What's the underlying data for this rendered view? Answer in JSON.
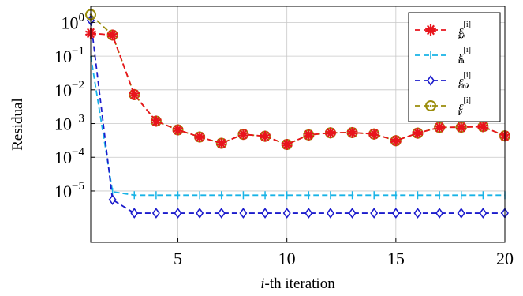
{
  "chart_data": {
    "type": "line",
    "xlabel": "-th iteration",
    "xlabel_var": "i",
    "ylabel": "Residual",
    "xlim": [
      1,
      20
    ],
    "ylim": [
      3e-07,
      3
    ],
    "yscale": "log",
    "x_ticks": [
      5,
      10,
      15,
      20
    ],
    "x_tick_labels": [
      "5",
      "10",
      "15",
      "20"
    ],
    "y_ticks": [
      1e-05,
      0.0001,
      0.001,
      0.01,
      0.1,
      1
    ],
    "y_tick_labels": [
      {
        "base": "10",
        "exp": "−5"
      },
      {
        "base": "10",
        "exp": "−4"
      },
      {
        "base": "10",
        "exp": "−3"
      },
      {
        "base": "10",
        "exp": "−2"
      },
      {
        "base": "10",
        "exp": "−1"
      },
      {
        "base": "10",
        "exp": "0"
      }
    ],
    "grid": true,
    "legend_position": "top-right",
    "x": [
      1,
      2,
      3,
      4,
      5,
      6,
      7,
      8,
      9,
      10,
      11,
      12,
      13,
      14,
      15,
      16,
      17,
      18,
      19,
      20
    ],
    "series": [
      {
        "name": "ε",
        "legend_sup": "[i]",
        "legend_sub": "gλ",
        "color": "#e8141c",
        "marker": "star",
        "values": [
          0.48,
          0.42,
          0.0072,
          0.00118,
          0.00065,
          0.0004,
          0.00026,
          0.00048,
          0.00042,
          0.00024,
          0.00046,
          0.00053,
          0.00054,
          0.00049,
          0.00031,
          0.00052,
          0.00077,
          0.00078,
          0.00081,
          0.00043
        ]
      },
      {
        "name": "ε",
        "legend_sup": "[i]",
        "legend_sub": "m̃",
        "color": "#18b3e6",
        "marker": "vbar",
        "values": [
          0.1,
          9.5e-06,
          7.5e-06,
          7.5e-06,
          7.5e-06,
          7.5e-06,
          7.5e-06,
          7.5e-06,
          7.5e-06,
          7.5e-06,
          7.5e-06,
          7.5e-06,
          7.5e-06,
          7.5e-06,
          7.5e-06,
          7.5e-06,
          7.5e-06,
          7.5e-06,
          7.5e-06,
          7.5e-06
        ]
      },
      {
        "name": "ε",
        "legend_sup": "[i]",
        "legend_sub": "σnλ",
        "color": "#1c1ccc",
        "marker": "diamond",
        "values": [
          1.15,
          5.5e-06,
          2.2e-06,
          2.2e-06,
          2.2e-06,
          2.2e-06,
          2.2e-06,
          2.2e-06,
          2.2e-06,
          2.2e-06,
          2.2e-06,
          2.2e-06,
          2.2e-06,
          2.2e-06,
          2.2e-06,
          2.2e-06,
          2.2e-06,
          2.2e-06,
          2.2e-06,
          2.2e-06
        ]
      },
      {
        "name": "ε",
        "legend_sup": "[i]",
        "legend_sub": "p",
        "color": "#9a8c0a",
        "marker": "circle",
        "values": [
          1.7,
          0.42,
          0.0072,
          0.00118,
          0.00065,
          0.0004,
          0.00026,
          0.00048,
          0.00042,
          0.00024,
          0.00046,
          0.00053,
          0.00054,
          0.00049,
          0.00031,
          0.00052,
          0.00077,
          0.00078,
          0.00081,
          0.00043
        ]
      }
    ]
  }
}
